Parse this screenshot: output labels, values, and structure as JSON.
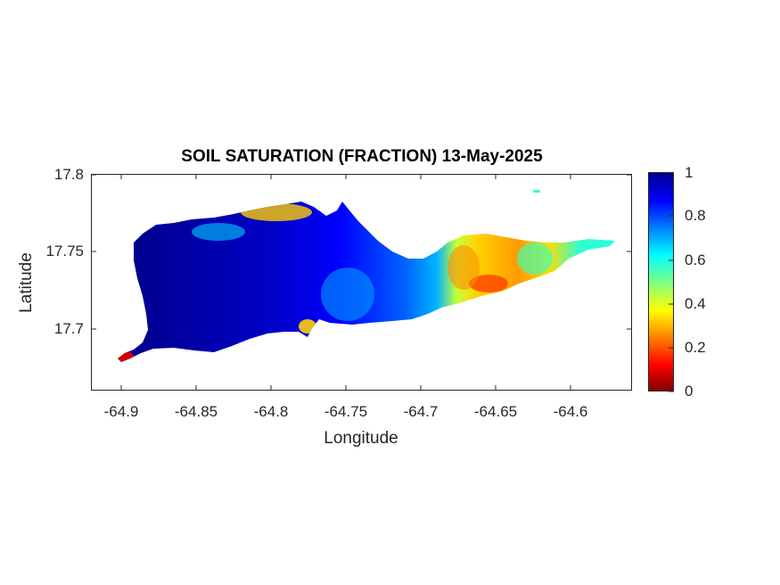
{
  "title": "SOIL SATURATION (FRACTION) 13-May-2025",
  "map": {
    "type": "raster-map",
    "xlabel": "Longitude",
    "ylabel": "Latitude",
    "xlim": [
      -64.92,
      -64.555
    ],
    "ylim": [
      17.655,
      17.8
    ],
    "xticks": [
      "-64.9",
      "-64.85",
      "-64.8",
      "-64.75",
      "-64.7",
      "-64.65",
      "-64.6"
    ],
    "yticks": [
      "17.7",
      "17.75",
      "17.8"
    ],
    "colormap": "jet",
    "color_range": [
      0,
      1
    ],
    "colorbar_ticks": [
      "0",
      "0.2",
      "0.4",
      "0.6",
      "0.8",
      "1"
    ],
    "background": "#ffffff"
  },
  "colors": {
    "jet_dark_blue": "#00008f",
    "jet_blue": "#0000ff",
    "jet_cyan": "#00ffff",
    "jet_yellow": "#ffff00",
    "jet_red": "#ff0000",
    "jet_dark_red": "#800000"
  }
}
